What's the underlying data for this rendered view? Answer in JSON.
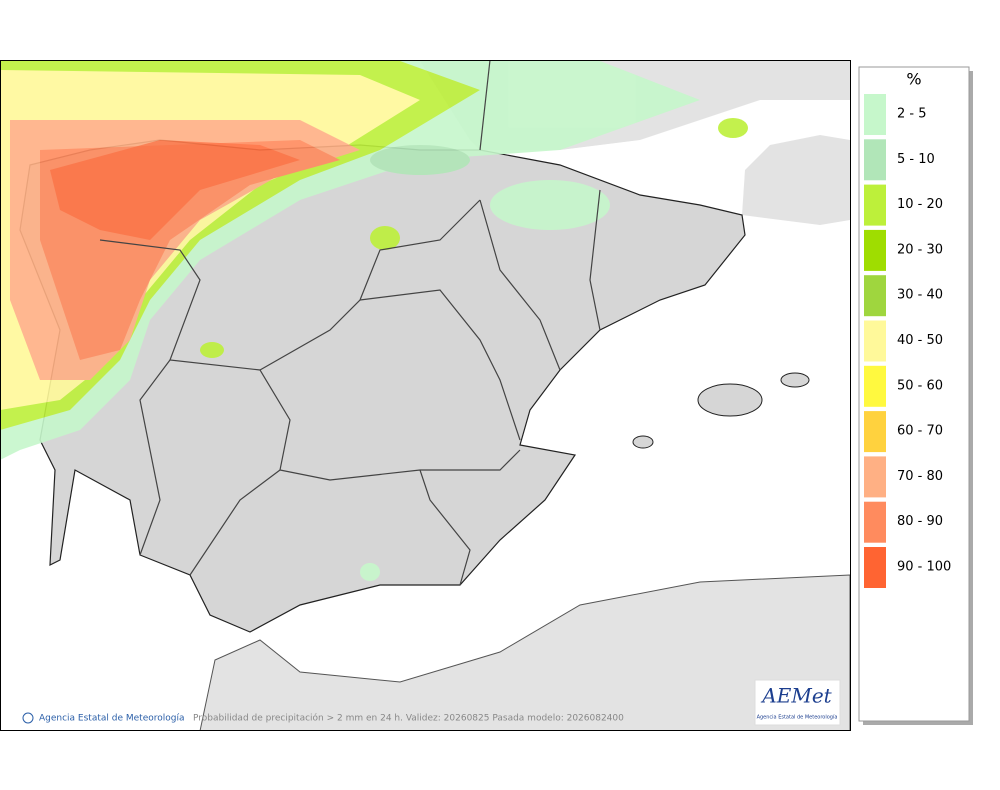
{
  "legend": {
    "title": "%",
    "items": [
      {
        "label": "2 - 5",
        "color": "#c6f7cb"
      },
      {
        "label": "5 - 10",
        "color": "#b1e6b8"
      },
      {
        "label": "10 - 20",
        "color": "#bdf03a"
      },
      {
        "label": "20 - 30",
        "color": "#9fdd00"
      },
      {
        "label": "30 - 40",
        "color": "#9fd63e"
      },
      {
        "label": "40 - 50",
        "color": "#fff99a"
      },
      {
        "label": "50 - 60",
        "color": "#fff93f"
      },
      {
        "label": "60 - 70",
        "color": "#ffd23e"
      },
      {
        "label": "70 - 80",
        "color": "#ffb084"
      },
      {
        "label": "80 - 90",
        "color": "#ff8b5e"
      },
      {
        "label": "90 - 100",
        "color": "#ff6432"
      }
    ]
  },
  "footer": {
    "copyright": "Agencia Estatal de Meteorología",
    "caption": "Probabilidad de precipitación > 2 mm en 24 h. Validez: 20260825 Pasada modelo: 2026082400"
  },
  "logo": {
    "mark": "AEMet",
    "name": "Agencia Estatal de Meteorología"
  }
}
